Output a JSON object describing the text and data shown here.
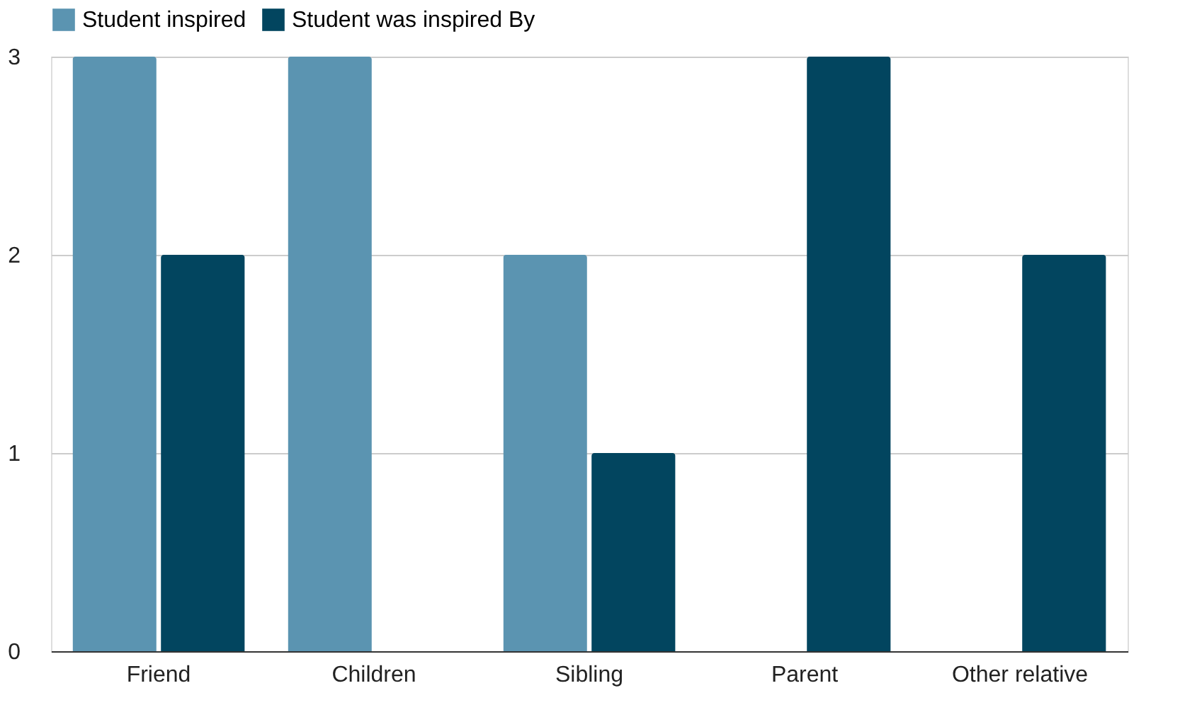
{
  "chart_data": {
    "type": "bar",
    "categories": [
      "Friend",
      "Children",
      "Sibling",
      "Parent",
      "Other relative"
    ],
    "series": [
      {
        "name": "Student inspired",
        "color": "#5b94b1",
        "values": [
          3,
          3,
          2,
          0,
          0
        ]
      },
      {
        "name": "Student was inspired By",
        "color": "#02455f",
        "values": [
          2,
          0,
          1,
          3,
          2
        ]
      }
    ],
    "ylim": [
      0,
      3
    ],
    "yticks": [
      0,
      1,
      2,
      3
    ],
    "grid": "y",
    "legend": "top"
  }
}
